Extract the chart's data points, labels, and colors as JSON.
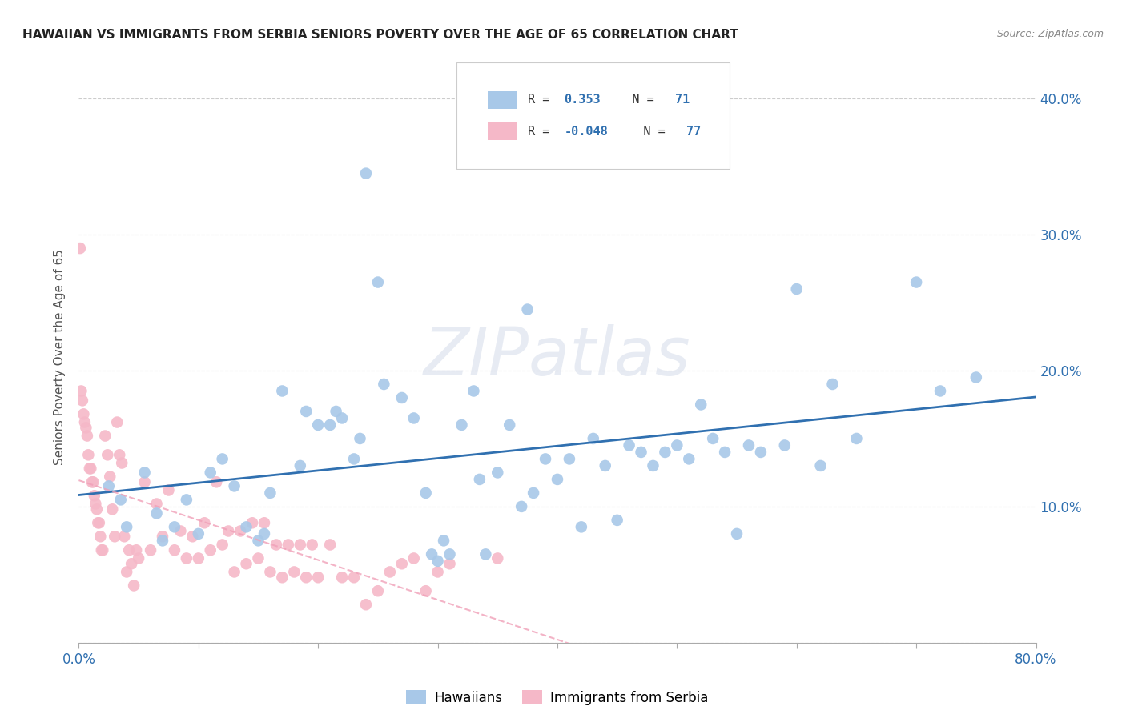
{
  "title": "HAWAIIAN VS IMMIGRANTS FROM SERBIA SENIORS POVERTY OVER THE AGE OF 65 CORRELATION CHART",
  "source": "Source: ZipAtlas.com",
  "ylabel": "Seniors Poverty Over the Age of 65",
  "xlim": [
    0.0,
    0.8
  ],
  "ylim": [
    0.0,
    0.42
  ],
  "xticks": [
    0.0,
    0.1,
    0.2,
    0.3,
    0.4,
    0.5,
    0.6,
    0.7,
    0.8
  ],
  "yticks": [
    0.0,
    0.1,
    0.2,
    0.3,
    0.4
  ],
  "xtick_labels": [
    "0.0%",
    "",
    "",
    "",
    "",
    "",
    "",
    "",
    "80.0%"
  ],
  "ytick_labels_right": [
    "",
    "10.0%",
    "20.0%",
    "30.0%",
    "40.0%"
  ],
  "legend_R_hawaiian": "0.353",
  "legend_N_hawaiian": "71",
  "legend_R_serbia": "-0.048",
  "legend_N_serbia": "77",
  "hawaiian_color": "#a8c8e8",
  "serbia_color": "#f5b8c8",
  "trendline_hawaiian_color": "#3070b0",
  "trendline_serbia_color": "#f0a0b8",
  "watermark": "ZIPatlas",
  "background_color": "#ffffff",
  "hawaiian_x": [
    0.025,
    0.035,
    0.04,
    0.055,
    0.065,
    0.07,
    0.08,
    0.09,
    0.1,
    0.11,
    0.12,
    0.13,
    0.14,
    0.15,
    0.155,
    0.16,
    0.17,
    0.185,
    0.19,
    0.2,
    0.21,
    0.215,
    0.22,
    0.23,
    0.235,
    0.24,
    0.25,
    0.255,
    0.27,
    0.28,
    0.29,
    0.295,
    0.3,
    0.305,
    0.31,
    0.32,
    0.33,
    0.335,
    0.34,
    0.35,
    0.36,
    0.37,
    0.375,
    0.38,
    0.39,
    0.4,
    0.41,
    0.42,
    0.43,
    0.44,
    0.45,
    0.46,
    0.47,
    0.48,
    0.49,
    0.5,
    0.51,
    0.52,
    0.53,
    0.54,
    0.55,
    0.56,
    0.57,
    0.59,
    0.6,
    0.62,
    0.63,
    0.65,
    0.7,
    0.72,
    0.75
  ],
  "hawaiian_y": [
    0.115,
    0.105,
    0.085,
    0.125,
    0.095,
    0.075,
    0.085,
    0.105,
    0.08,
    0.125,
    0.135,
    0.115,
    0.085,
    0.075,
    0.08,
    0.11,
    0.185,
    0.13,
    0.17,
    0.16,
    0.16,
    0.17,
    0.165,
    0.135,
    0.15,
    0.345,
    0.265,
    0.19,
    0.18,
    0.165,
    0.11,
    0.065,
    0.06,
    0.075,
    0.065,
    0.16,
    0.185,
    0.12,
    0.065,
    0.125,
    0.16,
    0.1,
    0.245,
    0.11,
    0.135,
    0.12,
    0.135,
    0.085,
    0.15,
    0.13,
    0.09,
    0.145,
    0.14,
    0.13,
    0.14,
    0.145,
    0.135,
    0.175,
    0.15,
    0.14,
    0.08,
    0.145,
    0.14,
    0.145,
    0.26,
    0.13,
    0.19,
    0.15,
    0.265,
    0.185,
    0.195
  ],
  "serbia_x": [
    0.001,
    0.002,
    0.003,
    0.004,
    0.005,
    0.006,
    0.007,
    0.008,
    0.009,
    0.01,
    0.011,
    0.012,
    0.013,
    0.014,
    0.015,
    0.016,
    0.017,
    0.018,
    0.019,
    0.02,
    0.022,
    0.024,
    0.026,
    0.028,
    0.03,
    0.032,
    0.034,
    0.036,
    0.038,
    0.04,
    0.042,
    0.044,
    0.046,
    0.048,
    0.05,
    0.055,
    0.06,
    0.065,
    0.07,
    0.075,
    0.08,
    0.085,
    0.09,
    0.095,
    0.1,
    0.105,
    0.11,
    0.115,
    0.12,
    0.125,
    0.13,
    0.135,
    0.14,
    0.145,
    0.15,
    0.155,
    0.16,
    0.165,
    0.17,
    0.175,
    0.18,
    0.185,
    0.19,
    0.195,
    0.2,
    0.21,
    0.22,
    0.23,
    0.24,
    0.25,
    0.26,
    0.27,
    0.28,
    0.29,
    0.3,
    0.31,
    0.35
  ],
  "serbia_y": [
    0.29,
    0.185,
    0.178,
    0.168,
    0.162,
    0.158,
    0.152,
    0.138,
    0.128,
    0.128,
    0.118,
    0.118,
    0.108,
    0.102,
    0.098,
    0.088,
    0.088,
    0.078,
    0.068,
    0.068,
    0.152,
    0.138,
    0.122,
    0.098,
    0.078,
    0.162,
    0.138,
    0.132,
    0.078,
    0.052,
    0.068,
    0.058,
    0.042,
    0.068,
    0.062,
    0.118,
    0.068,
    0.102,
    0.078,
    0.112,
    0.068,
    0.082,
    0.062,
    0.078,
    0.062,
    0.088,
    0.068,
    0.118,
    0.072,
    0.082,
    0.052,
    0.082,
    0.058,
    0.088,
    0.062,
    0.088,
    0.052,
    0.072,
    0.048,
    0.072,
    0.052,
    0.072,
    0.048,
    0.072,
    0.048,
    0.072,
    0.048,
    0.048,
    0.028,
    0.038,
    0.052,
    0.058,
    0.062,
    0.038,
    0.052,
    0.058,
    0.062
  ]
}
